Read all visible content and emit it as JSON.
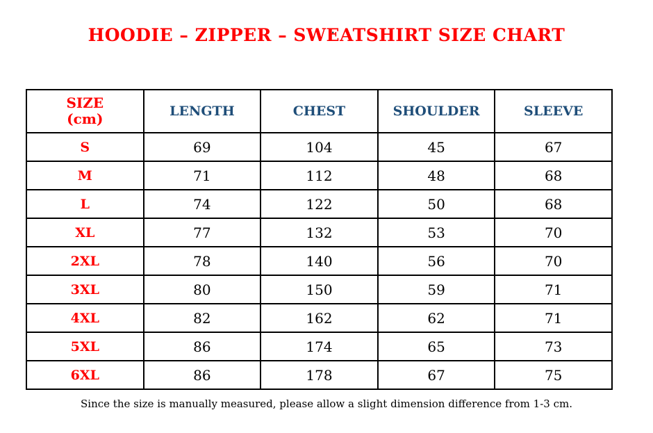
{
  "stray_mark": ".",
  "title": "HOODIE – ZIPPER – SWEATSHIRT SIZE CHART",
  "table": {
    "columns": [
      "SIZE\n(cm)",
      "LENGTH",
      "CHEST",
      "SHOULDER",
      "SLEEVE"
    ],
    "rows": [
      {
        "size": "S",
        "length": "69",
        "chest": "104",
        "shoulder": "45",
        "sleeve": "67"
      },
      {
        "size": "M",
        "length": "71",
        "chest": "112",
        "shoulder": "48",
        "sleeve": "68"
      },
      {
        "size": "L",
        "length": "74",
        "chest": "122",
        "shoulder": "50",
        "sleeve": "68"
      },
      {
        "size": "XL",
        "length": "77",
        "chest": "132",
        "shoulder": "53",
        "sleeve": "70"
      },
      {
        "size": "2XL",
        "length": "78",
        "chest": "140",
        "shoulder": "56",
        "sleeve": "70"
      },
      {
        "size": "3XL",
        "length": "80",
        "chest": "150",
        "shoulder": "59",
        "sleeve": "71"
      },
      {
        "size": "4XL",
        "length": "82",
        "chest": "162",
        "shoulder": "62",
        "sleeve": "71"
      },
      {
        "size": "5XL",
        "length": "86",
        "chest": "174",
        "shoulder": "65",
        "sleeve": "73"
      },
      {
        "size": "6XL",
        "length": "86",
        "chest": "178",
        "shoulder": "67",
        "sleeve": "75"
      }
    ]
  },
  "footnote": "Since the size is manually measured, please allow a slight dimension difference from 1-3 cm.",
  "colors": {
    "title_red": "#FF0000",
    "size_label_red": "#FF0000",
    "header_blue": "#1F4E79",
    "value_black": "#000000",
    "border_black": "#000000",
    "background": "#FFFFFF"
  }
}
